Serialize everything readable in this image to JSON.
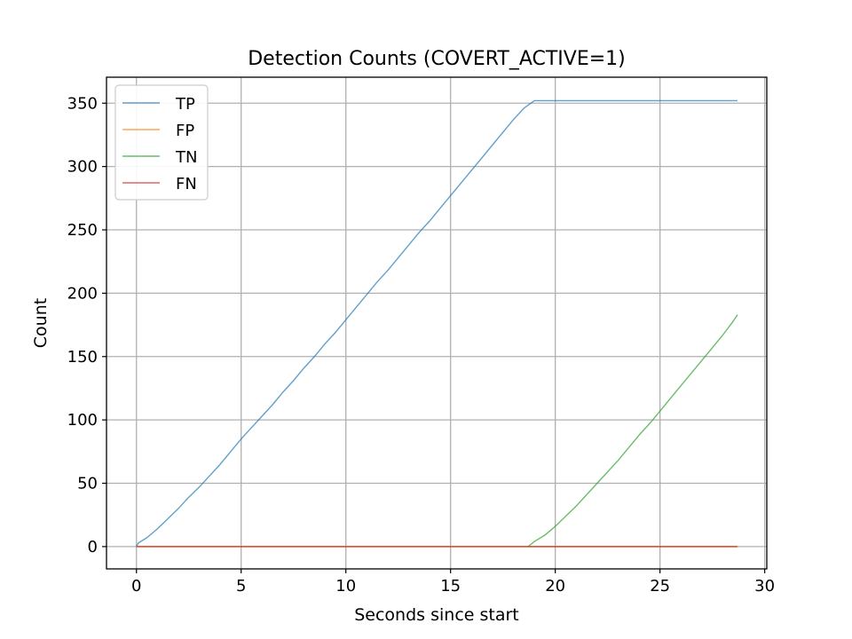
{
  "chart_data": {
    "type": "line",
    "title": "Detection Counts (COVERT_ACTIVE=1)",
    "xlabel": "Seconds since start",
    "ylabel": "Count",
    "xlim": [
      -1.43,
      30.1
    ],
    "ylim": [
      -17.6,
      370.5
    ],
    "x_ticks": [
      0,
      5,
      10,
      15,
      20,
      25,
      30
    ],
    "y_ticks": [
      0,
      50,
      100,
      150,
      200,
      250,
      300,
      350
    ],
    "x_tick_labels": [
      "0",
      "5",
      "10",
      "15",
      "20",
      "25",
      "30"
    ],
    "y_tick_labels": [
      "0",
      "50",
      "100",
      "150",
      "200",
      "250",
      "300",
      "350"
    ],
    "grid": true,
    "legend_position": "upper-left",
    "series": [
      {
        "name": "TP",
        "color": "#1f77b4",
        "opacity": 0.7,
        "points": [
          [
            0,
            0
          ],
          [
            0.1,
            3
          ],
          [
            0.5,
            7
          ],
          [
            1,
            14
          ],
          [
            1.5,
            22
          ],
          [
            2,
            30
          ],
          [
            2.5,
            39
          ],
          [
            3,
            47
          ],
          [
            3.5,
            56
          ],
          [
            4,
            65
          ],
          [
            4.5,
            75
          ],
          [
            5,
            85
          ],
          [
            5.5,
            94
          ],
          [
            6,
            103
          ],
          [
            6.5,
            112
          ],
          [
            7,
            122
          ],
          [
            7.5,
            131
          ],
          [
            8,
            141
          ],
          [
            8.5,
            150
          ],
          [
            9,
            160
          ],
          [
            9.5,
            169
          ],
          [
            10,
            179
          ],
          [
            10.5,
            189
          ],
          [
            11,
            199
          ],
          [
            11.5,
            209
          ],
          [
            12,
            218
          ],
          [
            12.5,
            228
          ],
          [
            13,
            238
          ],
          [
            13.5,
            248
          ],
          [
            14,
            257
          ],
          [
            14.5,
            267
          ],
          [
            15,
            277
          ],
          [
            15.5,
            287
          ],
          [
            16,
            297
          ],
          [
            16.5,
            307
          ],
          [
            17,
            317
          ],
          [
            17.5,
            327
          ],
          [
            18,
            337
          ],
          [
            18.5,
            346
          ],
          [
            19,
            352
          ],
          [
            20,
            352
          ],
          [
            21,
            352
          ],
          [
            22,
            352
          ],
          [
            23,
            352
          ],
          [
            24,
            352
          ],
          [
            25,
            352
          ],
          [
            26,
            352
          ],
          [
            27,
            352
          ],
          [
            28,
            352
          ],
          [
            28.7,
            352
          ]
        ]
      },
      {
        "name": "FP",
        "color": "#ff7f0e",
        "opacity": 0.7,
        "points": [
          [
            0,
            0
          ],
          [
            28.7,
            0
          ]
        ]
      },
      {
        "name": "TN",
        "color": "#2ca02c",
        "opacity": 0.7,
        "points": [
          [
            18.7,
            0
          ],
          [
            19,
            4
          ],
          [
            19.5,
            9
          ],
          [
            20,
            16
          ],
          [
            20.5,
            24
          ],
          [
            21,
            32
          ],
          [
            21.5,
            41
          ],
          [
            22,
            50
          ],
          [
            22.5,
            59
          ],
          [
            23,
            68
          ],
          [
            23.5,
            78
          ],
          [
            24,
            88
          ],
          [
            24.5,
            97
          ],
          [
            25,
            107
          ],
          [
            25.5,
            117
          ],
          [
            26,
            127
          ],
          [
            26.5,
            137
          ],
          [
            27,
            147
          ],
          [
            27.5,
            157
          ],
          [
            28,
            167
          ],
          [
            28.5,
            178
          ],
          [
            28.7,
            183
          ]
        ]
      },
      {
        "name": "FN",
        "color": "#d62728",
        "opacity": 0.7,
        "points": [
          [
            0,
            0
          ],
          [
            28.7,
            0
          ]
        ]
      }
    ]
  }
}
